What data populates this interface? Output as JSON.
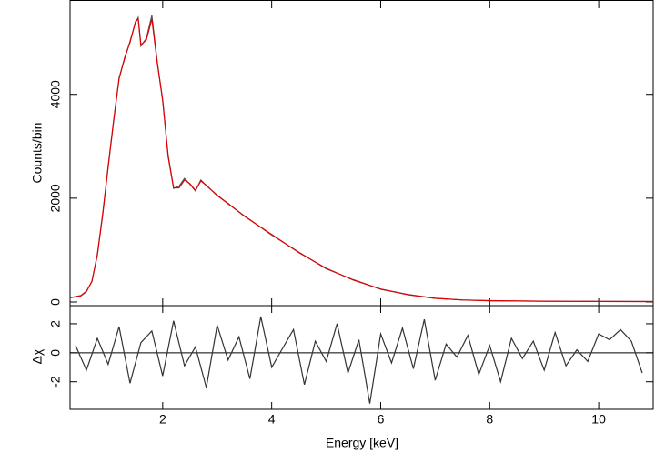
{
  "chart_data": [
    {
      "type": "line",
      "ylabel": "Counts/bin",
      "x": [
        0.3,
        0.5,
        0.6,
        0.7,
        0.8,
        0.9,
        1.0,
        1.1,
        1.2,
        1.3,
        1.4,
        1.5,
        1.55,
        1.6,
        1.7,
        1.8,
        1.9,
        2.0,
        2.1,
        2.2,
        2.3,
        2.4,
        2.5,
        2.6,
        2.7,
        2.8,
        3.0,
        3.2,
        3.5,
        4.0,
        4.5,
        5.0,
        5.5,
        6.0,
        6.5,
        7.0,
        7.5,
        8.0,
        9.0,
        10.0,
        11.0
      ],
      "series": [
        {
          "color": "#555555",
          "values": [
            85,
            125,
            210,
            390,
            920,
            1680,
            2620,
            3480,
            4320,
            4680,
            5020,
            5380,
            5480,
            4930,
            5080,
            5520,
            4620,
            3880,
            2830,
            2190,
            2230,
            2380,
            2270,
            2140,
            2350,
            2240,
            2060,
            1890,
            1660,
            1290,
            960,
            640,
            430,
            245,
            145,
            72,
            38,
            26,
            14,
            11,
            8
          ]
        },
        {
          "color": "#e00000",
          "values": [
            80,
            120,
            200,
            400,
            900,
            1700,
            2600,
            3500,
            4300,
            4700,
            5000,
            5400,
            5450,
            4950,
            5050,
            5450,
            4600,
            3900,
            2800,
            2200,
            2200,
            2350,
            2280,
            2150,
            2330,
            2250,
            2050,
            1900,
            1650,
            1300,
            950,
            650,
            420,
            250,
            140,
            70,
            40,
            25,
            15,
            10,
            8
          ]
        }
      ],
      "xlim": [
        0.3,
        11.0
      ],
      "ylim": [
        -70,
        5800
      ],
      "yticks": [
        0,
        2000,
        4000
      ]
    },
    {
      "type": "line",
      "ylabel": "Δχ",
      "xlabel": "Energy [keV]",
      "color": "#333333",
      "x": [
        0.4,
        0.6,
        0.8,
        1.0,
        1.2,
        1.4,
        1.6,
        1.8,
        2.0,
        2.2,
        2.4,
        2.6,
        2.8,
        3.0,
        3.2,
        3.4,
        3.6,
        3.8,
        4.0,
        4.2,
        4.4,
        4.6,
        4.8,
        5.0,
        5.2,
        5.4,
        5.6,
        5.8,
        6.0,
        6.2,
        6.4,
        6.6,
        6.8,
        7.0,
        7.2,
        7.4,
        7.6,
        7.8,
        8.0,
        8.2,
        8.4,
        8.6,
        8.8,
        9.0,
        9.2,
        9.4,
        9.6,
        9.8,
        10.0,
        10.2,
        10.4,
        10.6,
        10.8
      ],
      "values": [
        0.5,
        -1.2,
        1.0,
        -0.8,
        1.8,
        -2.1,
        0.7,
        1.5,
        -1.6,
        2.2,
        -0.9,
        0.4,
        -2.4,
        1.9,
        -0.5,
        1.1,
        -1.8,
        2.5,
        -1.0,
        0.3,
        1.6,
        -2.2,
        0.8,
        -0.6,
        2.0,
        -1.4,
        0.9,
        -3.5,
        1.3,
        -0.7,
        1.7,
        -1.1,
        2.3,
        -1.9,
        0.6,
        -0.3,
        1.2,
        -1.5,
        0.5,
        -2.0,
        1.0,
        -0.4,
        0.8,
        -1.2,
        1.4,
        -0.9,
        0.2,
        -0.6,
        1.3,
        0.9,
        1.6,
        0.8,
        -1.4
      ],
      "xlim": [
        0.3,
        11.0
      ],
      "xticks": [
        2,
        4,
        6,
        8,
        10
      ],
      "ylim": [
        -3.9,
        3.25
      ],
      "yticks": [
        -2,
        0,
        2
      ]
    }
  ]
}
